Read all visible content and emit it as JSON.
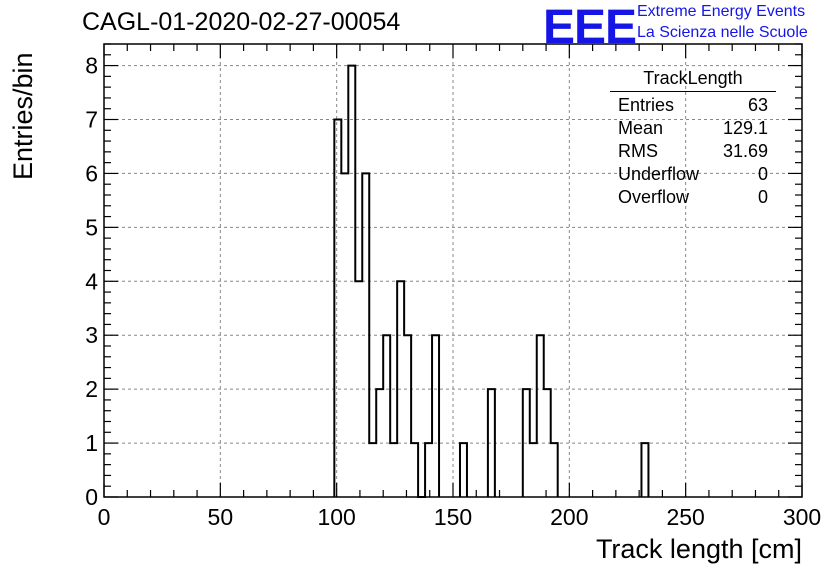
{
  "header": {
    "run_title": "CAGL-01-2020-02-27-00054",
    "logo_text": "EEE",
    "logo_line1": "Extreme Energy Events",
    "logo_line2": "La Scienza nelle Scuole",
    "logo_color": "#1515e6"
  },
  "stats_box": {
    "title": "TrackLength",
    "rows": [
      {
        "label": "Entries",
        "value": "63"
      },
      {
        "label": "Mean",
        "value": "129.1"
      },
      {
        "label": "RMS",
        "value": "31.69"
      },
      {
        "label": "Underflow",
        "value": "0"
      },
      {
        "label": "Overflow",
        "value": "0"
      }
    ]
  },
  "chart_data": {
    "type": "bar",
    "style": "step-histogram",
    "xlabel": "Track length [cm]",
    "ylabel": "Entries/bin",
    "xlim": [
      0,
      300
    ],
    "ylim": [
      0,
      8.4
    ],
    "xticks": [
      0,
      50,
      100,
      150,
      200,
      250,
      300
    ],
    "yticks": [
      0,
      1,
      2,
      3,
      4,
      5,
      6,
      7,
      8
    ],
    "grid": true,
    "bin_width": 3,
    "bins": [
      {
        "x": 99,
        "y": 7
      },
      {
        "x": 102,
        "y": 6
      },
      {
        "x": 105,
        "y": 8
      },
      {
        "x": 108,
        "y": 4
      },
      {
        "x": 111,
        "y": 6
      },
      {
        "x": 114,
        "y": 1
      },
      {
        "x": 117,
        "y": 2
      },
      {
        "x": 120,
        "y": 3
      },
      {
        "x": 123,
        "y": 1
      },
      {
        "x": 126,
        "y": 4
      },
      {
        "x": 129,
        "y": 3
      },
      {
        "x": 132,
        "y": 1
      },
      {
        "x": 135,
        "y": 0
      },
      {
        "x": 138,
        "y": 1
      },
      {
        "x": 141,
        "y": 3
      },
      {
        "x": 153,
        "y": 1
      },
      {
        "x": 165,
        "y": 2
      },
      {
        "x": 180,
        "y": 2
      },
      {
        "x": 183,
        "y": 1
      },
      {
        "x": 186,
        "y": 3
      },
      {
        "x": 189,
        "y": 2
      },
      {
        "x": 192,
        "y": 1
      },
      {
        "x": 231,
        "y": 1
      }
    ]
  }
}
